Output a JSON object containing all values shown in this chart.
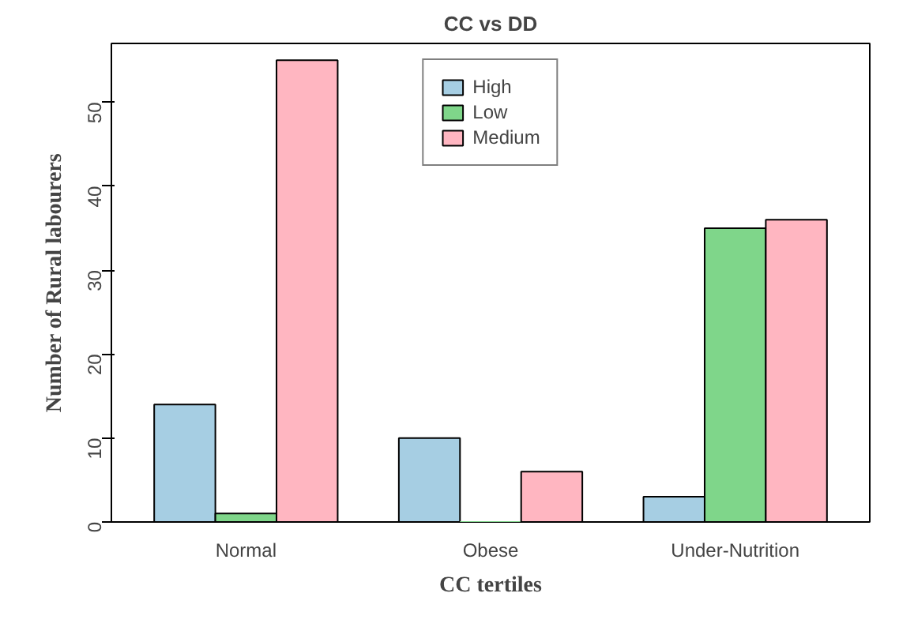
{
  "chart_data": {
    "type": "bar",
    "title": "CC vs DD",
    "xlabel": "CC tertiles",
    "ylabel": "Number of Rural labourers",
    "categories": [
      "Normal",
      "Obese",
      "Under-Nutrition"
    ],
    "series": [
      {
        "name": "High",
        "color": "#a6cee3",
        "values": [
          14,
          10,
          3
        ]
      },
      {
        "name": "Low",
        "color": "#7fd68a",
        "values": [
          1,
          0,
          35
        ]
      },
      {
        "name": "Medium",
        "color": "#ffb6c1",
        "values": [
          55,
          6,
          36
        ]
      }
    ],
    "ylim": [
      0,
      57
    ],
    "yticks": [
      0,
      10,
      20,
      30,
      40,
      50
    ],
    "grid": false,
    "legend": "top"
  }
}
